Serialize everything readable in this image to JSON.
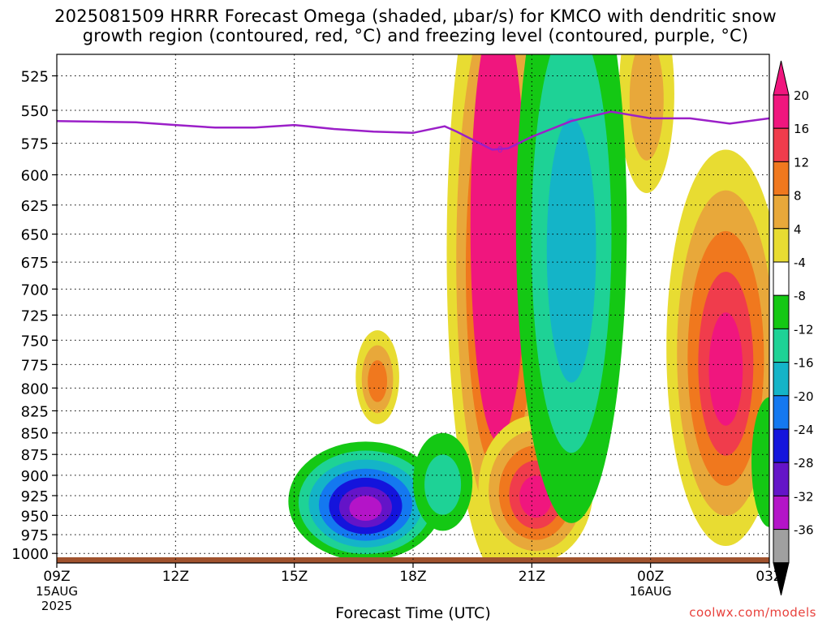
{
  "title_line1": "2025081509 HRRR Forecast Omega (shaded, μbar/s) for KMCO with dendritic snow",
  "title_line2": "growth region (contoured, red, °C) and freezing level (contoured, purple, °C)",
  "credit": "coolwx.com/models",
  "chart_data": {
    "type": "heatmap",
    "title": "2025081509 HRRR Forecast Omega (shaded, μbar/s) for KMCO with dendritic snow growth region (contoured, red, °C) and freezing level (contoured, purple, °C)",
    "xlabel": "Forecast Time (UTC)",
    "ylabel": "",
    "x_ticks": [
      {
        "hour": 0,
        "label": "09Z",
        "sub1": "15AUG",
        "sub2": "2025"
      },
      {
        "hour": 3,
        "label": "12Z"
      },
      {
        "hour": 6,
        "label": "15Z"
      },
      {
        "hour": 9,
        "label": "18Z"
      },
      {
        "hour": 12,
        "label": "21Z"
      },
      {
        "hour": 15,
        "label": "00Z",
        "sub1": "16AUG"
      },
      {
        "hour": 18,
        "label": "03Z"
      }
    ],
    "xlim_hours": [
      0,
      18
    ],
    "y_ticks": [
      525,
      550,
      575,
      600,
      625,
      650,
      675,
      700,
      725,
      750,
      775,
      800,
      825,
      850,
      875,
      900,
      925,
      950,
      975,
      1000
    ],
    "ylim_hpa": [
      510,
      1013
    ],
    "y_scale": "log-pressure",
    "grid": true,
    "colorbar": {
      "levels": [
        "20",
        "16",
        "12",
        "8",
        "4",
        "-4",
        "-8",
        "-12",
        "-16",
        "-20",
        "-24",
        "-28",
        "-32",
        "-36"
      ],
      "colors": [
        "#f0167e",
        "#f03c4c",
        "#f0781e",
        "#e8a83a",
        "#e8dc32",
        "#ffffff",
        "#14c814",
        "#1ed296",
        "#14b4c8",
        "#1478f0",
        "#1414dc",
        "#6414c8",
        "#b414c8",
        "#a0a0a0",
        "#000000"
      ],
      "top_arrow_color": "#f0167e",
      "bottom_arrow_color": "#000000"
    },
    "freezing_level_line": {
      "color": "#9b1fc8",
      "label": "0",
      "points": [
        [
          0,
          558
        ],
        [
          2,
          559
        ],
        [
          3,
          561
        ],
        [
          4,
          563
        ],
        [
          5,
          563
        ],
        [
          6,
          561
        ],
        [
          7,
          564
        ],
        [
          8,
          566
        ],
        [
          9,
          567
        ],
        [
          9.8,
          562
        ],
        [
          10.1,
          566
        ],
        [
          11,
          580
        ],
        [
          11.4,
          579
        ],
        [
          12,
          570
        ],
        [
          13,
          558
        ],
        [
          14,
          551
        ],
        [
          15,
          556
        ],
        [
          16,
          556
        ],
        [
          17,
          560
        ],
        [
          18,
          556
        ]
      ]
    },
    "shaded_regions": [
      {
        "name": "updraft column 20Z",
        "sign": "positive",
        "peak": 20,
        "center_hour": 11.2,
        "top_hpa": 515,
        "bottom_hpa": 1005
      },
      {
        "name": "updraft lower 21Z",
        "sign": "positive",
        "peak": 20,
        "center_hour": 12.3,
        "top_hpa": 840,
        "bottom_hpa": 1005
      },
      {
        "name": "weak updraft 17Z",
        "sign": "positive",
        "peak": 8,
        "center_hour": 8.1,
        "top_hpa": 745,
        "bottom_hpa": 835
      },
      {
        "name": "updraft 02Z",
        "sign": "positive",
        "peak": 20,
        "center_hour": 17.0,
        "top_hpa": 585,
        "bottom_hpa": 975
      },
      {
        "name": "weak updraft 00Z top",
        "sign": "positive",
        "peak": 8,
        "center_hour": 15.0,
        "top_hpa": 515,
        "bottom_hpa": 610
      },
      {
        "name": "downdraft 17Z",
        "sign": "negative",
        "peak": -28,
        "center_hour": 7.9,
        "top_hpa": 870,
        "bottom_hpa": 1000
      },
      {
        "name": "downdraft 19Z",
        "sign": "negative",
        "peak": -12,
        "center_hour": 9.8,
        "top_hpa": 860,
        "bottom_hpa": 960
      },
      {
        "name": "downdraft 22-23Z",
        "sign": "negative",
        "peak": -16,
        "center_hour": 13.0,
        "top_hpa": 515,
        "bottom_hpa": 945
      },
      {
        "name": "downdraft 03Z",
        "sign": "negative",
        "peak": -8,
        "center_hour": 18.0,
        "top_hpa": 820,
        "bottom_hpa": 960
      }
    ]
  }
}
